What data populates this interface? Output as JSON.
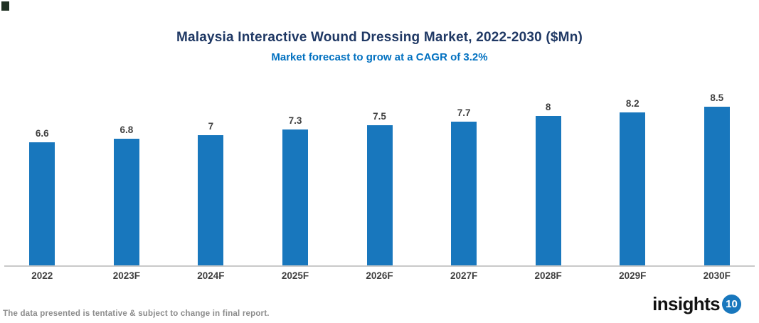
{
  "chart_data": {
    "type": "bar",
    "title": "Malaysia Interactive Wound Dressing Market, 2022-2030 ($Mn)",
    "subtitle": "Market forecast to grow at a CAGR of 3.2%",
    "categories": [
      "2022",
      "2023F",
      "2024F",
      "2025F",
      "2026F",
      "2027F",
      "2028F",
      "2029F",
      "2030F"
    ],
    "values": [
      6.6,
      6.8,
      7,
      7.3,
      7.5,
      7.7,
      8,
      8.2,
      8.5
    ],
    "value_labels": [
      "6.6",
      "6.8",
      "7",
      "7.3",
      "7.5",
      "7.7",
      "8",
      "8.2",
      "8.5"
    ],
    "xlabel": "",
    "ylabel": "",
    "ylim": [
      0,
      9
    ],
    "grid": "off",
    "legend": "none",
    "bar_color": "#1877BD",
    "axis_color": "#C9C9C9",
    "label_color": "#404040"
  },
  "header": {
    "title_color": "#1F3864",
    "subtitle_color": "#0070C0"
  },
  "footer": {
    "disclaimer": "The data presented is tentative & subject to change in final report.",
    "logo_text": "insights",
    "logo_badge": "10"
  }
}
